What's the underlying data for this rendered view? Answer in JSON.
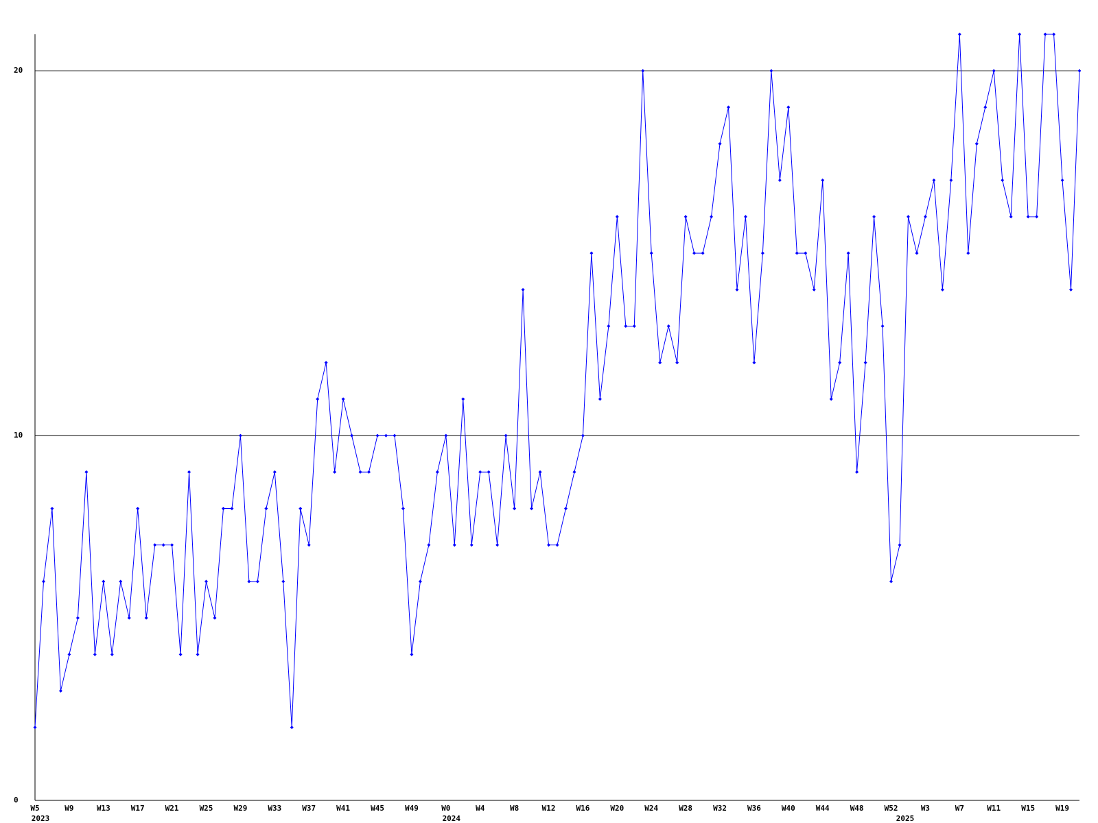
{
  "chart_data": {
    "type": "line",
    "categories": [
      "W5",
      null,
      null,
      null,
      "W9",
      null,
      null,
      null,
      "W13",
      null,
      null,
      null,
      "W17",
      null,
      null,
      null,
      "W21",
      null,
      null,
      null,
      "W25",
      null,
      null,
      null,
      "W29",
      null,
      null,
      null,
      "W33",
      null,
      null,
      null,
      "W37",
      null,
      null,
      null,
      "W41",
      null,
      null,
      null,
      "W45",
      null,
      null,
      null,
      "W49",
      null,
      null,
      null,
      "W0",
      null,
      null,
      null,
      "W4",
      null,
      null,
      null,
      "W8",
      null,
      null,
      null,
      "W12",
      null,
      null,
      null,
      "W16",
      null,
      null,
      null,
      "W20",
      null,
      null,
      null,
      "W24",
      null,
      null,
      null,
      "W28",
      null,
      null,
      null,
      "W32",
      null,
      null,
      null,
      "W36",
      null,
      null,
      null,
      "W40",
      null,
      null,
      null,
      "W44",
      null,
      null,
      null,
      "W48",
      null,
      null,
      null,
      "W52",
      null,
      null,
      null,
      "W3",
      null,
      null,
      null,
      "W7",
      null,
      null,
      null,
      "W11",
      null,
      null,
      null,
      "W15",
      null,
      null,
      null,
      "W19",
      null,
      null
    ],
    "x_sublabels": [
      "2023",
      null,
      null,
      null,
      null,
      null,
      null,
      null,
      null,
      null,
      null,
      null,
      null,
      null,
      null,
      null,
      null,
      null,
      null,
      null,
      null,
      null,
      null,
      null,
      null,
      null,
      null,
      null,
      null,
      null,
      null,
      null,
      null,
      null,
      null,
      null,
      null,
      null,
      null,
      null,
      null,
      null,
      null,
      null,
      null,
      null,
      null,
      null,
      "2024",
      null,
      null,
      null,
      null,
      null,
      null,
      null,
      null,
      null,
      null,
      null,
      null,
      null,
      null,
      null,
      null,
      null,
      null,
      null,
      null,
      null,
      null,
      null,
      null,
      null,
      null,
      null,
      null,
      null,
      null,
      null,
      null,
      null,
      null,
      null,
      null,
      null,
      null,
      null,
      null,
      null,
      null,
      null,
      null,
      null,
      null,
      null,
      null,
      null,
      null,
      null,
      null,
      "2025",
      null,
      null,
      null,
      null,
      null,
      null,
      null,
      null,
      null,
      null,
      null,
      null,
      null,
      null,
      null,
      null,
      null,
      null,
      null,
      null,
      null
    ],
    "series": [
      {
        "color": "#0000ff",
        "values": [
          2,
          6,
          8,
          3,
          4,
          5,
          9,
          4,
          6,
          4,
          6,
          5,
          8,
          5,
          7,
          7,
          7,
          4,
          9,
          4,
          6,
          5,
          8,
          8,
          10,
          6,
          6,
          8,
          9,
          6,
          2,
          8,
          7,
          11,
          12,
          9,
          11,
          10,
          9,
          9,
          10,
          10,
          10,
          8,
          4,
          6,
          7,
          9,
          10,
          7,
          11,
          7,
          9,
          9,
          7,
          10,
          8,
          14,
          8,
          9,
          7,
          7,
          8,
          9,
          10,
          15,
          11,
          13,
          16,
          13,
          13,
          20,
          15,
          12,
          13,
          12,
          16,
          15,
          15,
          16,
          18,
          19,
          14,
          16,
          12,
          15,
          20,
          17,
          19,
          15,
          15,
          14,
          17,
          11,
          12,
          15,
          9,
          12,
          16,
          13,
          6,
          7,
          16,
          15,
          16,
          17,
          14,
          17,
          21,
          15,
          18,
          19,
          20,
          17,
          16,
          21,
          16,
          16,
          21,
          21,
          17,
          14,
          20
        ]
      }
    ],
    "ylim": [
      0,
      21
    ],
    "yticks": [
      0,
      10,
      20
    ],
    "grid": true
  }
}
